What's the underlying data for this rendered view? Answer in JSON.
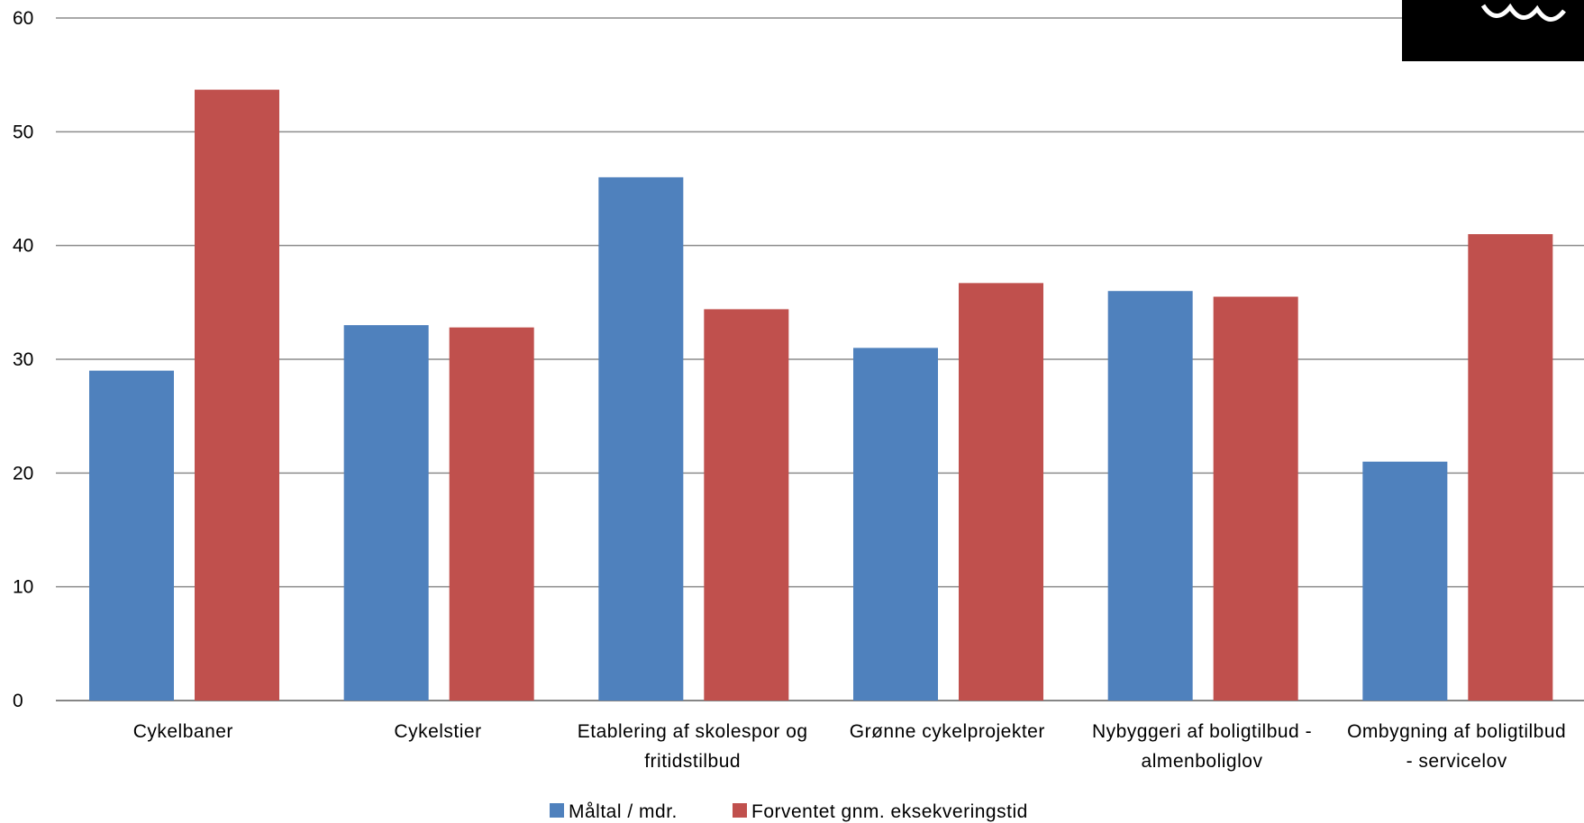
{
  "chart_data": {
    "type": "bar",
    "categories": [
      [
        "Cykelbaner"
      ],
      [
        "Cykelstier"
      ],
      [
        "Etablering af skolespor og",
        "fritidstilbud"
      ],
      [
        "Grønne cykelprojekter"
      ],
      [
        "Nybyggeri af boligtilbud -",
        "almenboliglov"
      ],
      [
        "Ombygning af boligtilbud",
        "- servicelov"
      ]
    ],
    "series": [
      {
        "name": "Måltal / mdr.",
        "color": "#4F81BD",
        "values": [
          29,
          33,
          46,
          31,
          36,
          21
        ]
      },
      {
        "name": "Forventet gnm. eksekveringstid",
        "color": "#C0504D",
        "values": [
          53.7,
          32.8,
          34.4,
          36.7,
          35.5,
          41
        ]
      }
    ],
    "yticks": [
      "0",
      "10",
      "20",
      "30",
      "40",
      "50",
      "60"
    ],
    "ylim": [
      0,
      60
    ],
    "grid": true,
    "legend": "bottom-center"
  }
}
